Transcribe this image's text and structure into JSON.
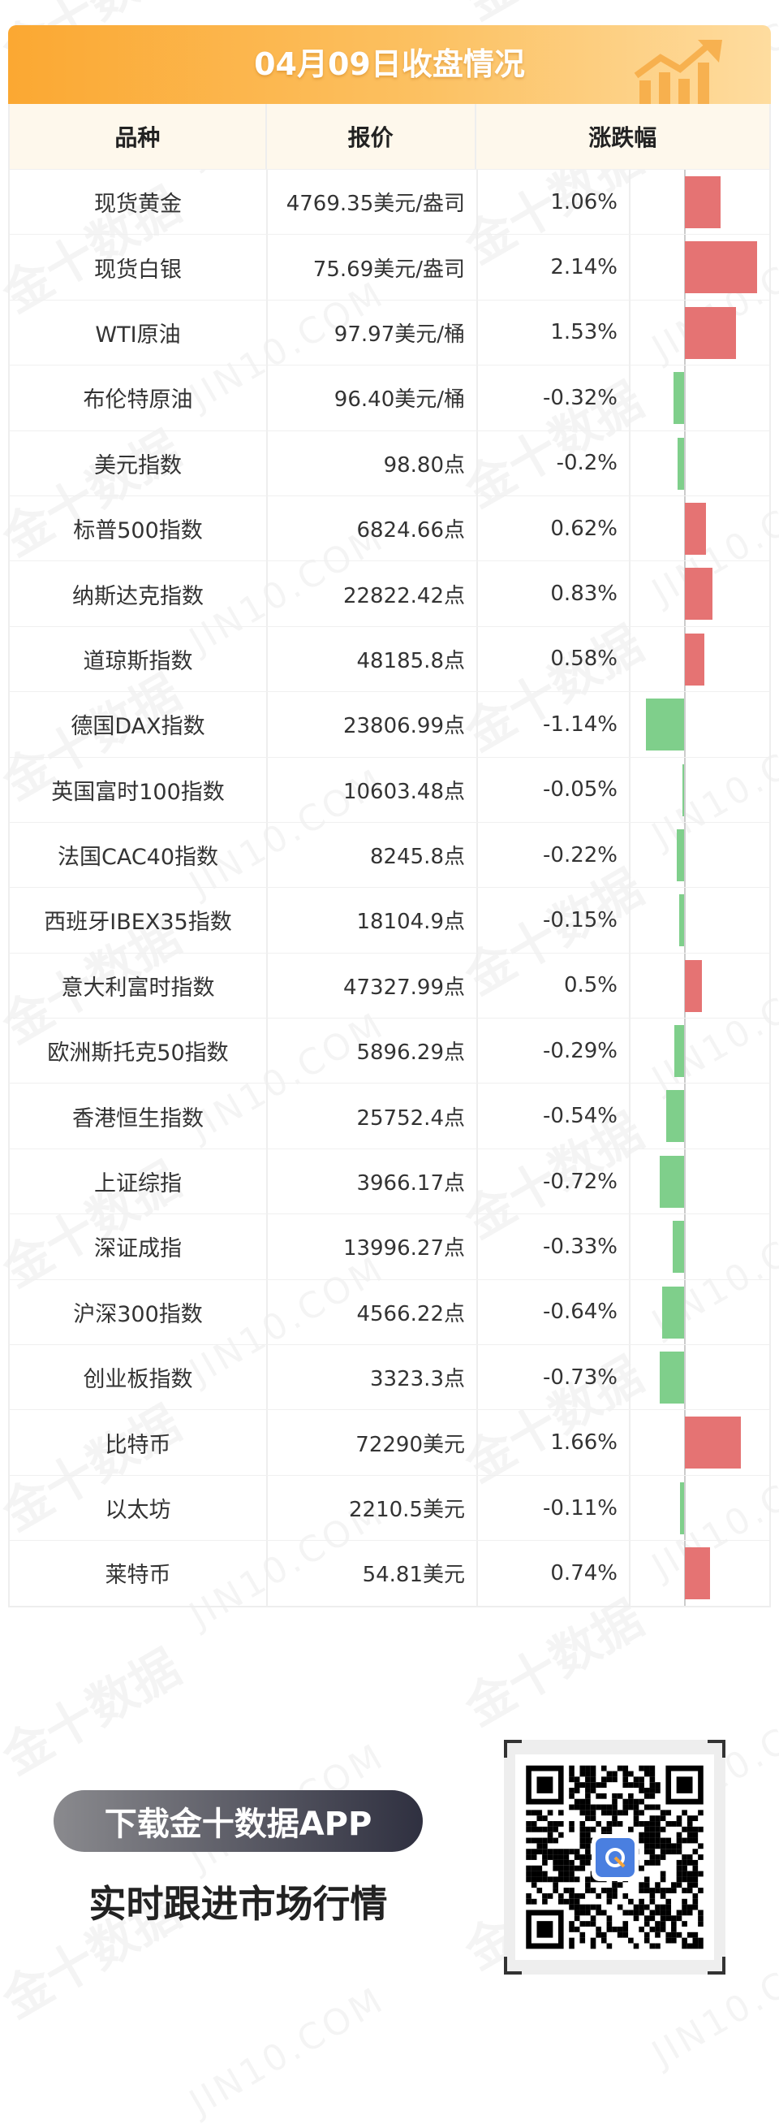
{
  "header": {
    "title": "04月09日收盘情况"
  },
  "columns": [
    "品种",
    "报价",
    "涨跌幅"
  ],
  "colors": {
    "up": "#e57373",
    "down": "#7fcf8b",
    "banner_start": "#fba832",
    "banner_end": "#fedc9f"
  },
  "rows": [
    {
      "name": "现货黄金",
      "price": "4769.35美元/盎司",
      "change": "1.06%",
      "value": 1.06
    },
    {
      "name": "现货白银",
      "price": "75.69美元/盎司",
      "change": "2.14%",
      "value": 2.14
    },
    {
      "name": "WTI原油",
      "price": "97.97美元/桶",
      "change": "1.53%",
      "value": 1.53
    },
    {
      "name": "布伦特原油",
      "price": "96.40美元/桶",
      "change": "-0.32%",
      "value": -0.32
    },
    {
      "name": "美元指数",
      "price": "98.80点",
      "change": "-0.2%",
      "value": -0.2
    },
    {
      "name": "标普500指数",
      "price": "6824.66点",
      "change": "0.62%",
      "value": 0.62
    },
    {
      "name": "纳斯达克指数",
      "price": "22822.42点",
      "change": "0.83%",
      "value": 0.83
    },
    {
      "name": "道琼斯指数",
      "price": "48185.8点",
      "change": "0.58%",
      "value": 0.58
    },
    {
      "name": "德国DAX指数",
      "price": "23806.99点",
      "change": "-1.14%",
      "value": -1.14
    },
    {
      "name": "英国富时100指数",
      "price": "10603.48点",
      "change": "-0.05%",
      "value": -0.05
    },
    {
      "name": "法国CAC40指数",
      "price": "8245.8点",
      "change": "-0.22%",
      "value": -0.22
    },
    {
      "name": "西班牙IBEX35指数",
      "price": "18104.9点",
      "change": "-0.15%",
      "value": -0.15
    },
    {
      "name": "意大利富时指数",
      "price": "47327.99点",
      "change": "0.5%",
      "value": 0.5
    },
    {
      "name": "欧洲斯托克50指数",
      "price": "5896.29点",
      "change": "-0.29%",
      "value": -0.29
    },
    {
      "name": "香港恒生指数",
      "price": "25752.4点",
      "change": "-0.54%",
      "value": -0.54
    },
    {
      "name": "上证综指",
      "price": "3966.17点",
      "change": "-0.72%",
      "value": -0.72
    },
    {
      "name": "深证成指",
      "price": "13996.27点",
      "change": "-0.33%",
      "value": -0.33
    },
    {
      "name": "沪深300指数",
      "price": "4566.22点",
      "change": "-0.64%",
      "value": -0.64
    },
    {
      "name": "创业板指数",
      "price": "3323.3点",
      "change": "-0.73%",
      "value": -0.73
    },
    {
      "name": "比特币",
      "price": "72290美元",
      "change": "1.66%",
      "value": 1.66
    },
    {
      "name": "以太坊",
      "price": "2210.5美元",
      "change": "-0.11%",
      "value": -0.11
    },
    {
      "name": "莱特币",
      "price": "54.81美元",
      "change": "0.74%",
      "value": 0.74
    }
  ],
  "footer": {
    "download_label": "下载金十数据APP",
    "slogan": "实时跟进市场行情"
  },
  "watermark": {
    "cn": "金十数据",
    "en": "JIN10.COM"
  }
}
